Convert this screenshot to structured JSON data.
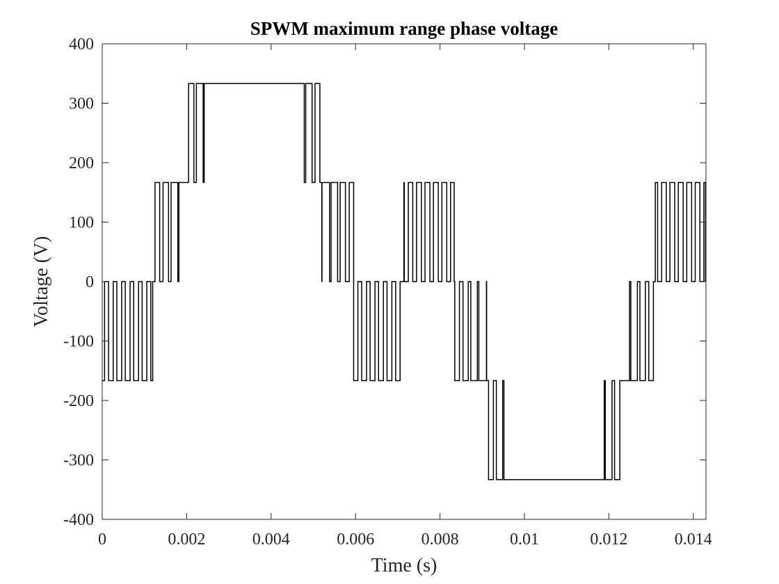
{
  "chart_data": {
    "type": "line",
    "title": "SPWM maximum range phase voltage",
    "xlabel": "Time (s)",
    "ylabel": "Voltage (V)",
    "xlim": [
      0,
      0.0143
    ],
    "ylim": [
      -400,
      400
    ],
    "xticks": [
      0,
      0.002,
      0.004,
      0.006,
      0.008,
      0.01,
      0.012,
      0.014
    ],
    "xtick_labels": [
      "0",
      "0.002",
      "0.004",
      "0.006",
      "0.008",
      "0.01",
      "0.012",
      "0.014"
    ],
    "yticks": [
      -400,
      -300,
      -200,
      -100,
      0,
      100,
      200,
      300,
      400
    ],
    "ytick_labels": [
      "-400",
      "-300",
      "-200",
      "-100",
      "0",
      "100",
      "200",
      "300",
      "400"
    ],
    "grid": false,
    "legend": "none",
    "line_color": "#000000",
    "series": [
      {
        "levels": [
          -333.3,
          -166.7,
          0,
          166.7,
          333.3
        ],
        "carrier_frequency_hz": 5000,
        "fundamental_frequency_hz": 70,
        "waveform_peak_v": 333.3
      }
    ]
  }
}
